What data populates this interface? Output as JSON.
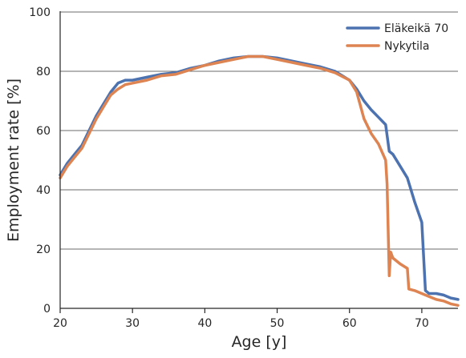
{
  "chart_data": {
    "type": "line",
    "xlabel": "Age [y]",
    "ylabel": "Employment rate [%]",
    "xlim": [
      20,
      75
    ],
    "ylim": [
      0,
      100
    ],
    "xticks": [
      20,
      30,
      40,
      50,
      60,
      70
    ],
    "yticks": [
      0,
      20,
      40,
      60,
      80,
      100
    ],
    "grid": "horizontal",
    "legend_position": "top-right",
    "series": [
      {
        "name": "Eläkeikä 70",
        "color": "#4c72b0",
        "x": [
          20,
          21,
          22,
          23,
          24,
          25,
          26,
          27,
          28,
          29,
          30,
          32,
          34,
          36,
          38,
          40,
          42,
          44,
          46,
          48,
          50,
          52,
          54,
          56,
          58,
          60,
          61,
          62,
          63,
          64,
          65,
          65.5,
          66,
          67,
          68,
          69,
          70,
          70.5,
          71,
          72,
          73,
          74,
          75
        ],
        "y": [
          45,
          49,
          52,
          55,
          60,
          65,
          69,
          73,
          76,
          77,
          77,
          78,
          79,
          79.5,
          81,
          82,
          83.5,
          84.5,
          85,
          85,
          84.5,
          83.5,
          82.5,
          81.5,
          80,
          77,
          74,
          70,
          67,
          64.5,
          62,
          53,
          52,
          48,
          44,
          36,
          29,
          6,
          5,
          5,
          4.5,
          3.5,
          3
        ]
      },
      {
        "name": "Nykytila",
        "color": "#dd8452",
        "x": [
          20,
          21,
          22,
          23,
          24,
          25,
          26,
          27,
          28,
          29,
          30,
          32,
          34,
          36,
          38,
          40,
          42,
          44,
          46,
          48,
          50,
          52,
          54,
          56,
          58,
          60,
          61,
          62,
          63,
          64,
          65,
          65.2,
          65.5,
          65.7,
          66,
          67,
          68,
          68.2,
          69,
          70,
          71,
          72,
          73,
          74,
          75
        ],
        "y": [
          44,
          48,
          51,
          54,
          59,
          64,
          68,
          72,
          74,
          75.5,
          76,
          77,
          78.5,
          79,
          80.5,
          82,
          83,
          84,
          85,
          85,
          84,
          83,
          82,
          81,
          79.5,
          77,
          73,
          64,
          59,
          55.5,
          50,
          42,
          11,
          19,
          17,
          15,
          13.5,
          6.5,
          6,
          5,
          4,
          3,
          2.5,
          1.5,
          1
        ]
      }
    ]
  }
}
